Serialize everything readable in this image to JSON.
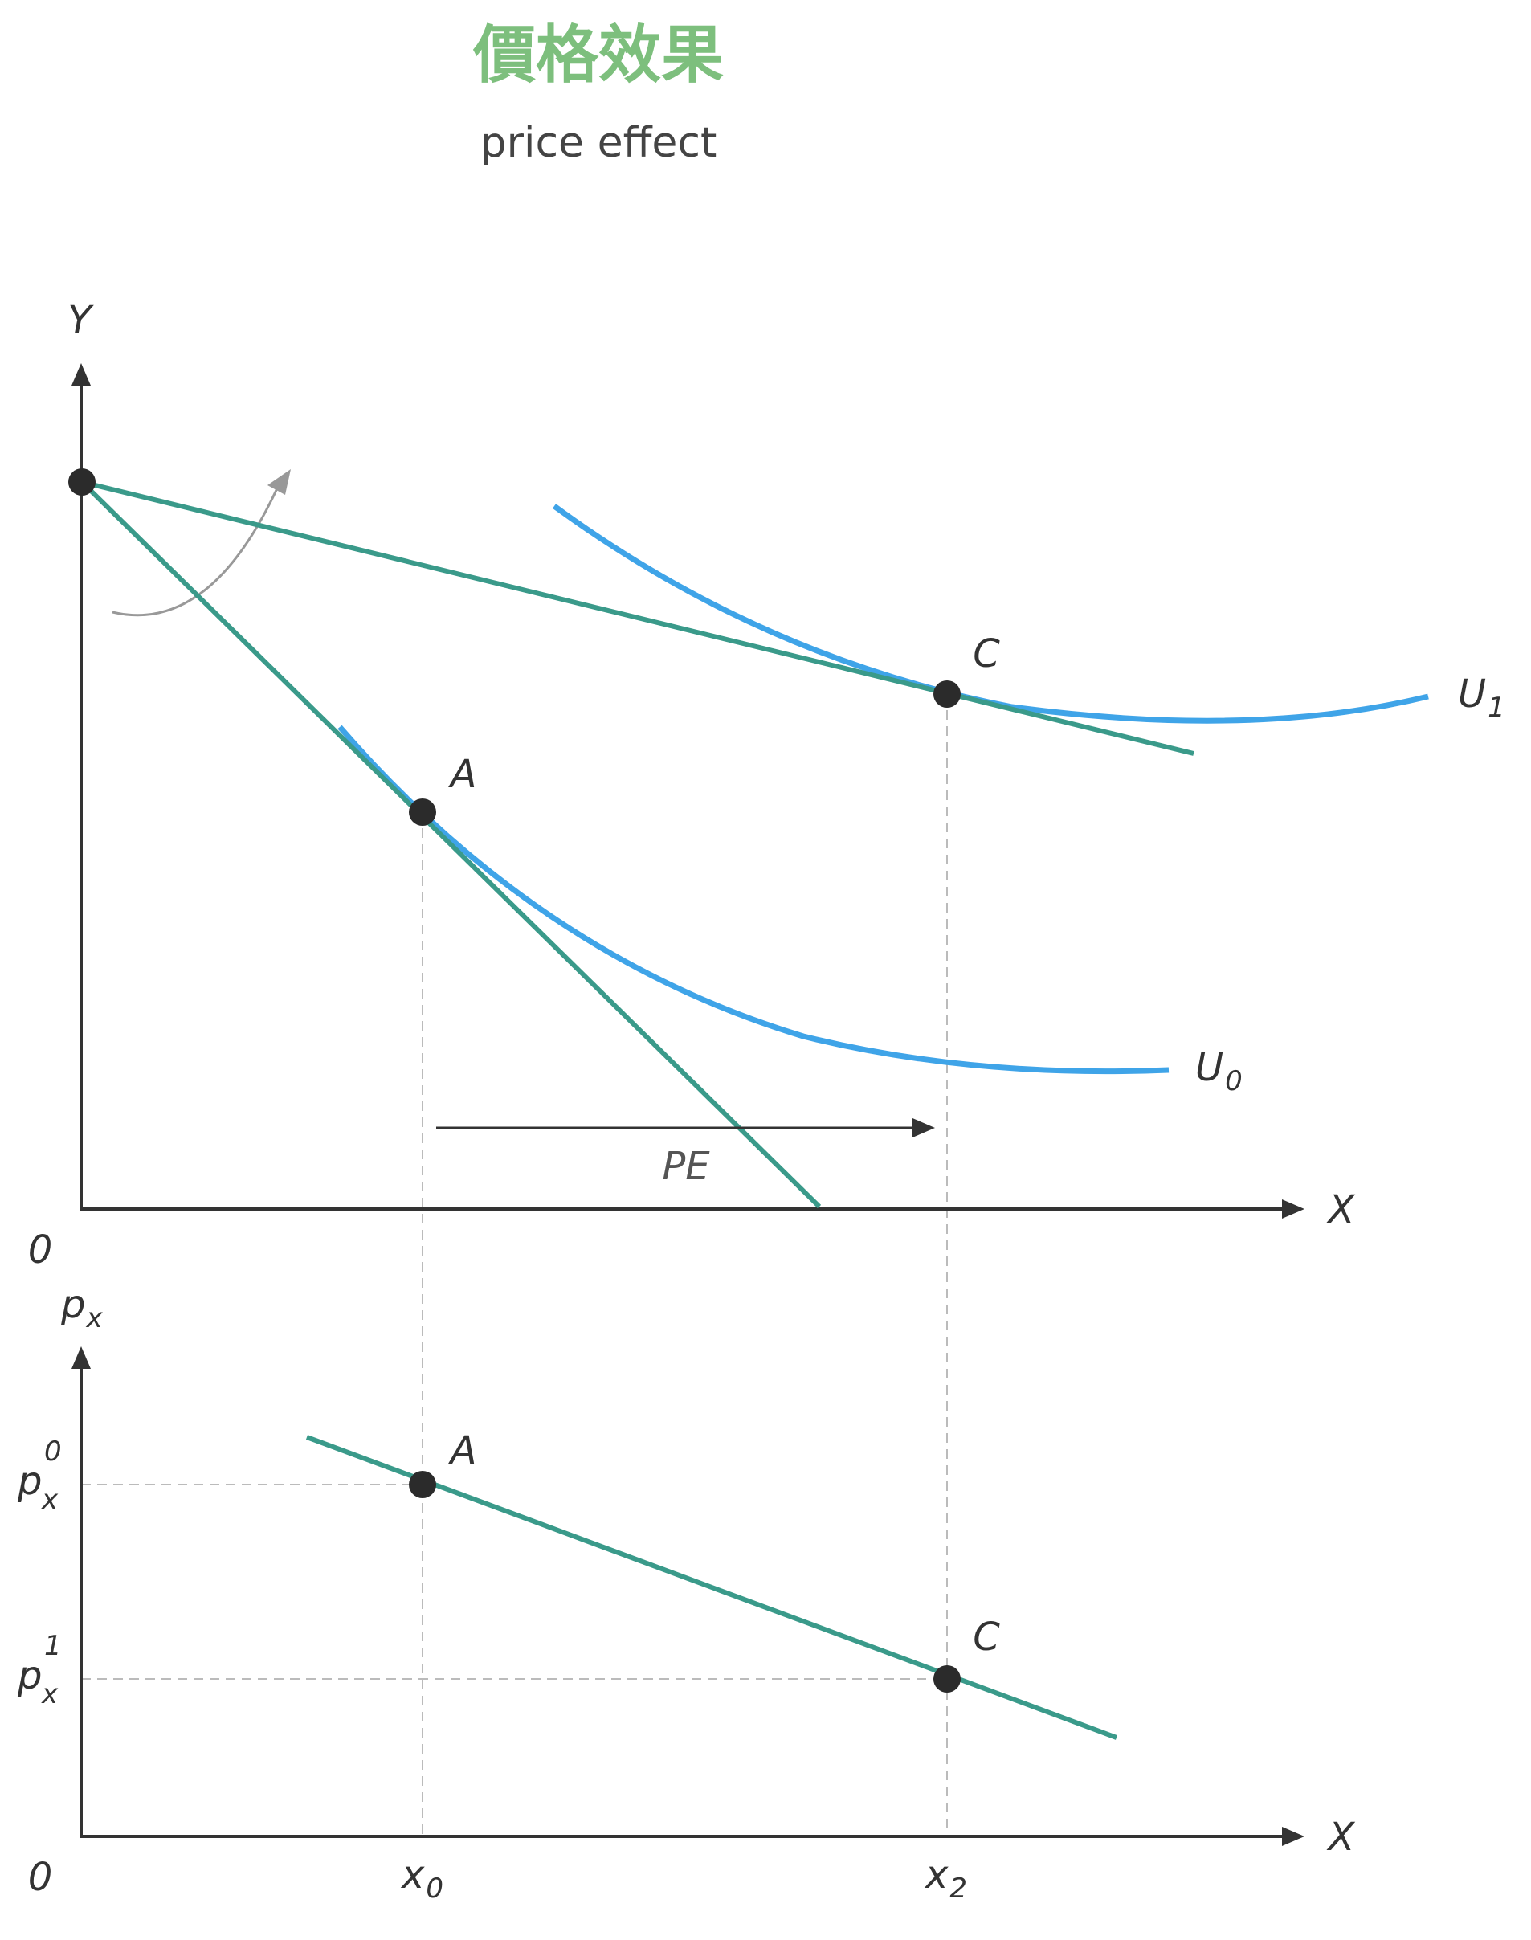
{
  "title_zh": "價格效果",
  "title_en": "price effect",
  "colors": {
    "title_zh": "#7dbf7d",
    "title_en": "#444444",
    "axis": "#333333",
    "budget": "#3a9a8a",
    "indiff": "#3fa4e8",
    "dash": "#bbbbbb",
    "point": "#2b2b2b",
    "rotate_arrow": "#999999"
  },
  "top_panel": {
    "y_axis_label": "Y",
    "x_axis_label": "X",
    "origin_label": "0",
    "point_a_label": "A",
    "point_c_label": "C",
    "u0": {
      "main": "U",
      "sub": "0"
    },
    "u1": {
      "main": "U",
      "sub": "1"
    },
    "pe_label": "PE"
  },
  "bottom_panel": {
    "y_axis": {
      "main": "p",
      "sub": "x"
    },
    "x_axis_label": "X",
    "origin_label": "0",
    "point_a_label": "A",
    "point_c_label": "C",
    "px0": {
      "main": "p",
      "sub": "x",
      "sup": "0"
    },
    "px1": {
      "main": "p",
      "sub": "x",
      "sup": "1"
    },
    "x0": {
      "main": "x",
      "sub": "0"
    },
    "x2": {
      "main": "x",
      "sub": "2"
    }
  }
}
